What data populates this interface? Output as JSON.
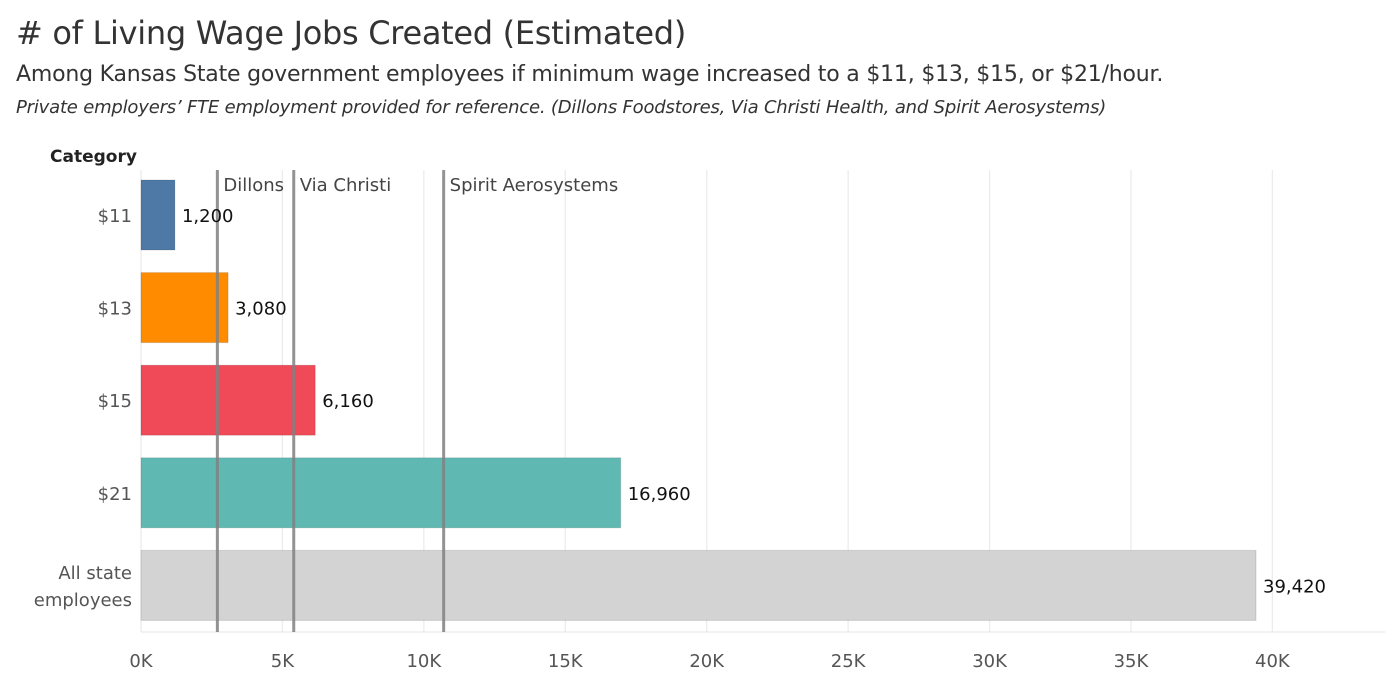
{
  "title": "# of Living Wage Jobs Created (Estimated)",
  "subtitle": "Among Kansas State government employees if minimum wage increased to a $11, $13, $15, or $21/hour.",
  "note": "Private employers’ FTE employment provided for reference.  (Dillons Foodstores, Via Christi Health, and Spirit Aerosystems)",
  "chart_data": {
    "type": "bar",
    "orientation": "horizontal",
    "title": "# of Living Wage Jobs Created (Estimated)",
    "subtitle": "Among Kansas State government employees if minimum wage increased to a $11, $13, $15, or $21/hour.",
    "category_header": "Category",
    "categories": [
      "$11",
      "$13",
      "$15",
      "$21",
      "All state employees"
    ],
    "category_lines": [
      [
        "$11"
      ],
      [
        "$13"
      ],
      [
        "$15"
      ],
      [
        "$21"
      ],
      [
        "All state",
        "employees"
      ]
    ],
    "values": [
      1200,
      3080,
      6160,
      16960,
      39420
    ],
    "value_labels": [
      "1,200",
      "3,080",
      "6,160",
      "16,960",
      "39,420"
    ],
    "colors": [
      "#4e79a7",
      "#ff8c00",
      "#f04a58",
      "#5fb9b2",
      "#d3d3d3"
    ],
    "reference_lines": [
      {
        "label": "Dillons",
        "value": 2700
      },
      {
        "label": "Via Christi",
        "value": 5400
      },
      {
        "label": "Spirit Aerosystems",
        "value": 10700
      }
    ],
    "x_ticks": [
      0,
      5000,
      10000,
      15000,
      20000,
      25000,
      30000,
      35000,
      40000
    ],
    "x_tick_labels": [
      "0K",
      "5K",
      "10K",
      "15K",
      "20K",
      "25K",
      "30K",
      "35K",
      "40K"
    ],
    "xlim": [
      0,
      44000
    ],
    "grid": true,
    "reference_line_color": "#808080"
  }
}
